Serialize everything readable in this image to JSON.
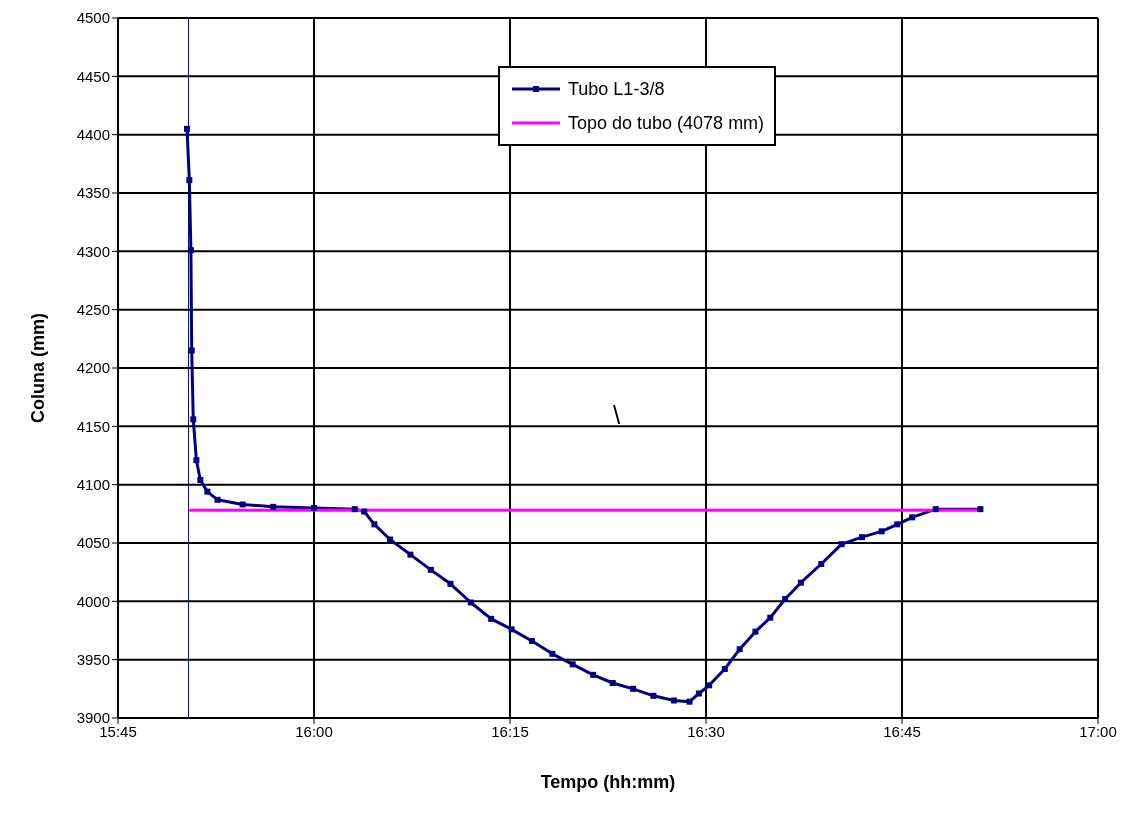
{
  "chart_data": {
    "type": "line",
    "xlabel": "Tempo (hh:mm)",
    "ylabel": "Coluna (mm)",
    "xlim": [
      15.75,
      17
    ],
    "xticks": [
      {
        "value": 15.75,
        "label": "15:45"
      },
      {
        "value": 16,
        "label": "16:00"
      },
      {
        "value": 16.25,
        "label": "16:15"
      },
      {
        "value": 16.5,
        "label": "16:30"
      },
      {
        "value": 16.75,
        "label": "16:45"
      },
      {
        "value": 17,
        "label": "17:00"
      }
    ],
    "ylim": [
      3900,
      4500
    ],
    "yticks": [
      3900,
      3950,
      4000,
      4050,
      4100,
      4150,
      4200,
      4250,
      4300,
      4350,
      4400,
      4450,
      4500
    ],
    "grid": true,
    "legend": "top",
    "marker": "square",
    "line_style": "solid",
    "annotations": [
      "\\"
    ],
    "ref_lines": [
      {
        "axis": "x",
        "value": 15.84,
        "color": "#000080"
      }
    ],
    "series": [
      {
        "name": "Tubo L1-3/8",
        "color": "#000080",
        "x": [
          15.838,
          15.841,
          15.843,
          15.844,
          15.846,
          15.85,
          15.855,
          15.864,
          15.877,
          15.909,
          15.948,
          16.0,
          16.052,
          16.064,
          16.077,
          16.097,
          16.123,
          16.149,
          16.174,
          16.2,
          16.226,
          16.252,
          16.278,
          16.304,
          16.33,
          16.356,
          16.381,
          16.407,
          16.433,
          16.459,
          16.479,
          16.491,
          16.504,
          16.524,
          16.543,
          16.563,
          16.582,
          16.601,
          16.621,
          16.647,
          16.673,
          16.699,
          16.724,
          16.744,
          16.763,
          16.793,
          16.85
        ],
        "values": [
          4405,
          4361,
          4301,
          4215,
          4156,
          4121,
          4104,
          4094,
          4087,
          4083,
          4081,
          4080,
          4079,
          4077,
          4066,
          4053,
          4040,
          4027,
          4015,
          3999,
          3985,
          3976,
          3966,
          3955,
          3946,
          3937,
          3930,
          3925,
          3919,
          3915,
          3914,
          3921,
          3928,
          3942,
          3959,
          3974,
          3986,
          4002,
          4016,
          4032,
          4049,
          4055,
          4060,
          4066,
          4072,
          4079,
          4079
        ]
      },
      {
        "name": "Topo do tubo (4078 mm)",
        "color": "#ff00ff",
        "marker": "none",
        "x": [
          15.841,
          16.85
        ],
        "values": [
          4078,
          4078
        ]
      }
    ]
  }
}
